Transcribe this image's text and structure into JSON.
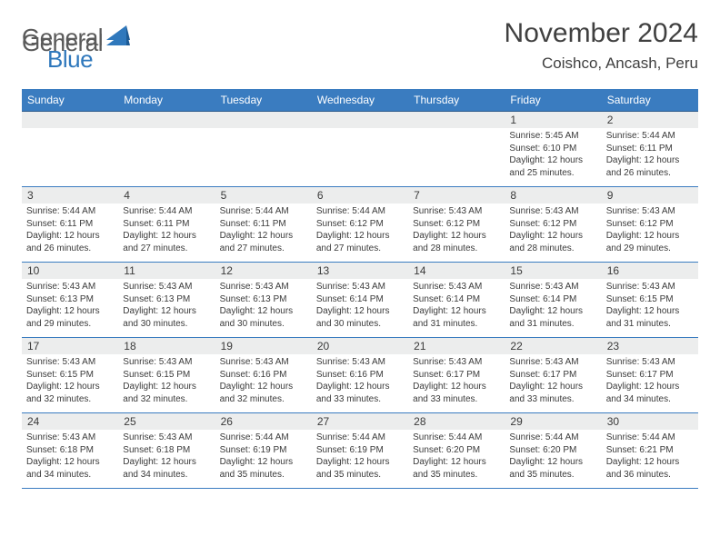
{
  "logo": {
    "general": "General",
    "blue": "Blue"
  },
  "title": "November 2024",
  "location": "Coishco, Ancash, Peru",
  "colors": {
    "header_bg": "#3a7cc0",
    "header_text": "#ffffff",
    "date_strip_bg": "#eceded",
    "row_border": "#3a7cc0",
    "text": "#3a3a3a",
    "logo_gray": "#5a5a5a",
    "logo_blue": "#2f78bc"
  },
  "day_names": [
    "Sunday",
    "Monday",
    "Tuesday",
    "Wednesday",
    "Thursday",
    "Friday",
    "Saturday"
  ],
  "weeks": [
    [
      {
        "date": "",
        "sunrise": "",
        "sunset": "",
        "daylight": ""
      },
      {
        "date": "",
        "sunrise": "",
        "sunset": "",
        "daylight": ""
      },
      {
        "date": "",
        "sunrise": "",
        "sunset": "",
        "daylight": ""
      },
      {
        "date": "",
        "sunrise": "",
        "sunset": "",
        "daylight": ""
      },
      {
        "date": "",
        "sunrise": "",
        "sunset": "",
        "daylight": ""
      },
      {
        "date": "1",
        "sunrise": "Sunrise: 5:45 AM",
        "sunset": "Sunset: 6:10 PM",
        "daylight": "Daylight: 12 hours and 25 minutes."
      },
      {
        "date": "2",
        "sunrise": "Sunrise: 5:44 AM",
        "sunset": "Sunset: 6:11 PM",
        "daylight": "Daylight: 12 hours and 26 minutes."
      }
    ],
    [
      {
        "date": "3",
        "sunrise": "Sunrise: 5:44 AM",
        "sunset": "Sunset: 6:11 PM",
        "daylight": "Daylight: 12 hours and 26 minutes."
      },
      {
        "date": "4",
        "sunrise": "Sunrise: 5:44 AM",
        "sunset": "Sunset: 6:11 PM",
        "daylight": "Daylight: 12 hours and 27 minutes."
      },
      {
        "date": "5",
        "sunrise": "Sunrise: 5:44 AM",
        "sunset": "Sunset: 6:11 PM",
        "daylight": "Daylight: 12 hours and 27 minutes."
      },
      {
        "date": "6",
        "sunrise": "Sunrise: 5:44 AM",
        "sunset": "Sunset: 6:12 PM",
        "daylight": "Daylight: 12 hours and 27 minutes."
      },
      {
        "date": "7",
        "sunrise": "Sunrise: 5:43 AM",
        "sunset": "Sunset: 6:12 PM",
        "daylight": "Daylight: 12 hours and 28 minutes."
      },
      {
        "date": "8",
        "sunrise": "Sunrise: 5:43 AM",
        "sunset": "Sunset: 6:12 PM",
        "daylight": "Daylight: 12 hours and 28 minutes."
      },
      {
        "date": "9",
        "sunrise": "Sunrise: 5:43 AM",
        "sunset": "Sunset: 6:12 PM",
        "daylight": "Daylight: 12 hours and 29 minutes."
      }
    ],
    [
      {
        "date": "10",
        "sunrise": "Sunrise: 5:43 AM",
        "sunset": "Sunset: 6:13 PM",
        "daylight": "Daylight: 12 hours and 29 minutes."
      },
      {
        "date": "11",
        "sunrise": "Sunrise: 5:43 AM",
        "sunset": "Sunset: 6:13 PM",
        "daylight": "Daylight: 12 hours and 30 minutes."
      },
      {
        "date": "12",
        "sunrise": "Sunrise: 5:43 AM",
        "sunset": "Sunset: 6:13 PM",
        "daylight": "Daylight: 12 hours and 30 minutes."
      },
      {
        "date": "13",
        "sunrise": "Sunrise: 5:43 AM",
        "sunset": "Sunset: 6:14 PM",
        "daylight": "Daylight: 12 hours and 30 minutes."
      },
      {
        "date": "14",
        "sunrise": "Sunrise: 5:43 AM",
        "sunset": "Sunset: 6:14 PM",
        "daylight": "Daylight: 12 hours and 31 minutes."
      },
      {
        "date": "15",
        "sunrise": "Sunrise: 5:43 AM",
        "sunset": "Sunset: 6:14 PM",
        "daylight": "Daylight: 12 hours and 31 minutes."
      },
      {
        "date": "16",
        "sunrise": "Sunrise: 5:43 AM",
        "sunset": "Sunset: 6:15 PM",
        "daylight": "Daylight: 12 hours and 31 minutes."
      }
    ],
    [
      {
        "date": "17",
        "sunrise": "Sunrise: 5:43 AM",
        "sunset": "Sunset: 6:15 PM",
        "daylight": "Daylight: 12 hours and 32 minutes."
      },
      {
        "date": "18",
        "sunrise": "Sunrise: 5:43 AM",
        "sunset": "Sunset: 6:15 PM",
        "daylight": "Daylight: 12 hours and 32 minutes."
      },
      {
        "date": "19",
        "sunrise": "Sunrise: 5:43 AM",
        "sunset": "Sunset: 6:16 PM",
        "daylight": "Daylight: 12 hours and 32 minutes."
      },
      {
        "date": "20",
        "sunrise": "Sunrise: 5:43 AM",
        "sunset": "Sunset: 6:16 PM",
        "daylight": "Daylight: 12 hours and 33 minutes."
      },
      {
        "date": "21",
        "sunrise": "Sunrise: 5:43 AM",
        "sunset": "Sunset: 6:17 PM",
        "daylight": "Daylight: 12 hours and 33 minutes."
      },
      {
        "date": "22",
        "sunrise": "Sunrise: 5:43 AM",
        "sunset": "Sunset: 6:17 PM",
        "daylight": "Daylight: 12 hours and 33 minutes."
      },
      {
        "date": "23",
        "sunrise": "Sunrise: 5:43 AM",
        "sunset": "Sunset: 6:17 PM",
        "daylight": "Daylight: 12 hours and 34 minutes."
      }
    ],
    [
      {
        "date": "24",
        "sunrise": "Sunrise: 5:43 AM",
        "sunset": "Sunset: 6:18 PM",
        "daylight": "Daylight: 12 hours and 34 minutes."
      },
      {
        "date": "25",
        "sunrise": "Sunrise: 5:43 AM",
        "sunset": "Sunset: 6:18 PM",
        "daylight": "Daylight: 12 hours and 34 minutes."
      },
      {
        "date": "26",
        "sunrise": "Sunrise: 5:44 AM",
        "sunset": "Sunset: 6:19 PM",
        "daylight": "Daylight: 12 hours and 35 minutes."
      },
      {
        "date": "27",
        "sunrise": "Sunrise: 5:44 AM",
        "sunset": "Sunset: 6:19 PM",
        "daylight": "Daylight: 12 hours and 35 minutes."
      },
      {
        "date": "28",
        "sunrise": "Sunrise: 5:44 AM",
        "sunset": "Sunset: 6:20 PM",
        "daylight": "Daylight: 12 hours and 35 minutes."
      },
      {
        "date": "29",
        "sunrise": "Sunrise: 5:44 AM",
        "sunset": "Sunset: 6:20 PM",
        "daylight": "Daylight: 12 hours and 35 minutes."
      },
      {
        "date": "30",
        "sunrise": "Sunrise: 5:44 AM",
        "sunset": "Sunset: 6:21 PM",
        "daylight": "Daylight: 12 hours and 36 minutes."
      }
    ]
  ]
}
